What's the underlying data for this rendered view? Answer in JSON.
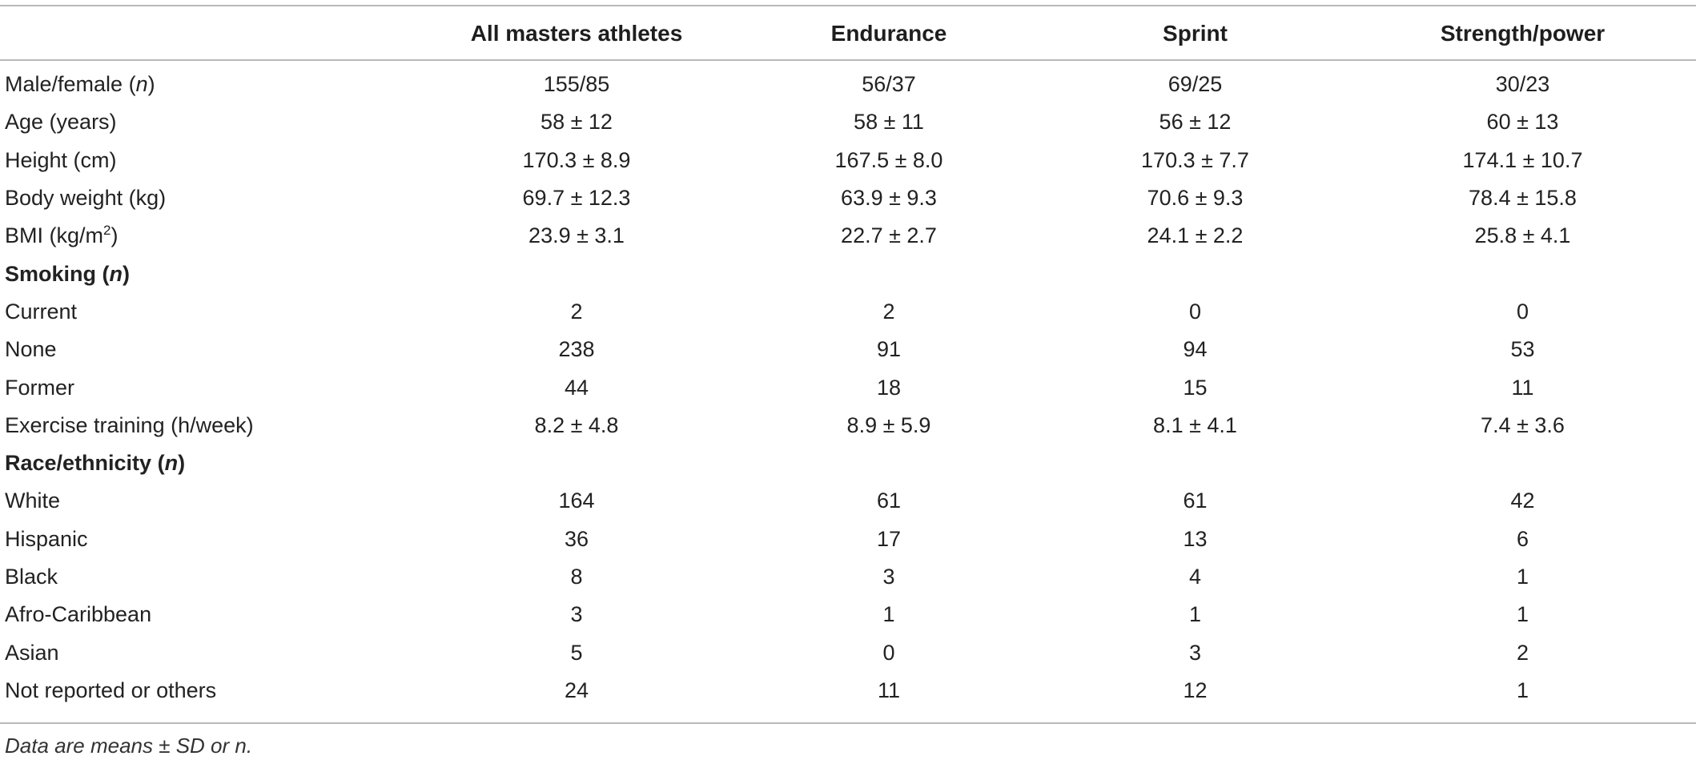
{
  "table": {
    "headers": [
      "",
      "All masters athletes",
      "Endurance",
      "Sprint",
      "Strength/power"
    ],
    "rows": [
      {
        "label": "Male/female (",
        "label_italic": "n",
        "label_suffix": ")",
        "values": [
          "155/85",
          "56/37",
          "69/25",
          "30/23"
        ]
      },
      {
        "label": "Age (years)",
        "values": [
          "58 ± 12",
          "58 ± 11",
          "56 ± 12",
          "60 ± 13"
        ]
      },
      {
        "label": "Height (cm)",
        "values": [
          "170.3 ± 8.9",
          "167.5 ± 8.0",
          "170.3 ± 7.7",
          "174.1 ± 10.7"
        ]
      },
      {
        "label": "Body weight (kg)",
        "values": [
          "69.7 ± 12.3",
          "63.9 ± 9.3",
          "70.6 ± 9.3",
          "78.4 ± 15.8"
        ]
      },
      {
        "label": "BMI (kg/m",
        "label_sup": "2",
        "label_suffix": ")",
        "values": [
          "23.9 ± 3.1",
          "22.7 ± 2.7",
          "24.1 ± 2.2",
          "25.8 ± 4.1"
        ]
      },
      {
        "section": true,
        "label": "Smoking (",
        "label_italic": "n",
        "label_suffix": ")"
      },
      {
        "label": "Current",
        "values": [
          "2",
          "2",
          "0",
          "0"
        ]
      },
      {
        "label": "None",
        "values": [
          "238",
          "91",
          "94",
          "53"
        ]
      },
      {
        "label": "Former",
        "values": [
          "44",
          "18",
          "15",
          "11"
        ]
      },
      {
        "label": "Exercise training (h/week)",
        "values": [
          "8.2 ± 4.8",
          "8.9 ± 5.9",
          "8.1 ± 4.1",
          "7.4 ± 3.6"
        ]
      },
      {
        "section": true,
        "label": "Race/ethnicity (",
        "label_italic": "n",
        "label_suffix": ")"
      },
      {
        "label": "White",
        "values": [
          "164",
          "61",
          "61",
          "42"
        ]
      },
      {
        "label": "Hispanic",
        "values": [
          "36",
          "17",
          "13",
          "6"
        ]
      },
      {
        "label": "Black",
        "values": [
          "8",
          "3",
          "4",
          "1"
        ]
      },
      {
        "label": "Afro-Caribbean",
        "values": [
          "3",
          "1",
          "1",
          "1"
        ]
      },
      {
        "label": "Asian",
        "values": [
          "5",
          "0",
          "3",
          "2"
        ]
      },
      {
        "label": "Not reported or others",
        "values": [
          "24",
          "11",
          "12",
          "1"
        ]
      }
    ]
  },
  "footnote": "Data are means ± SD or n."
}
